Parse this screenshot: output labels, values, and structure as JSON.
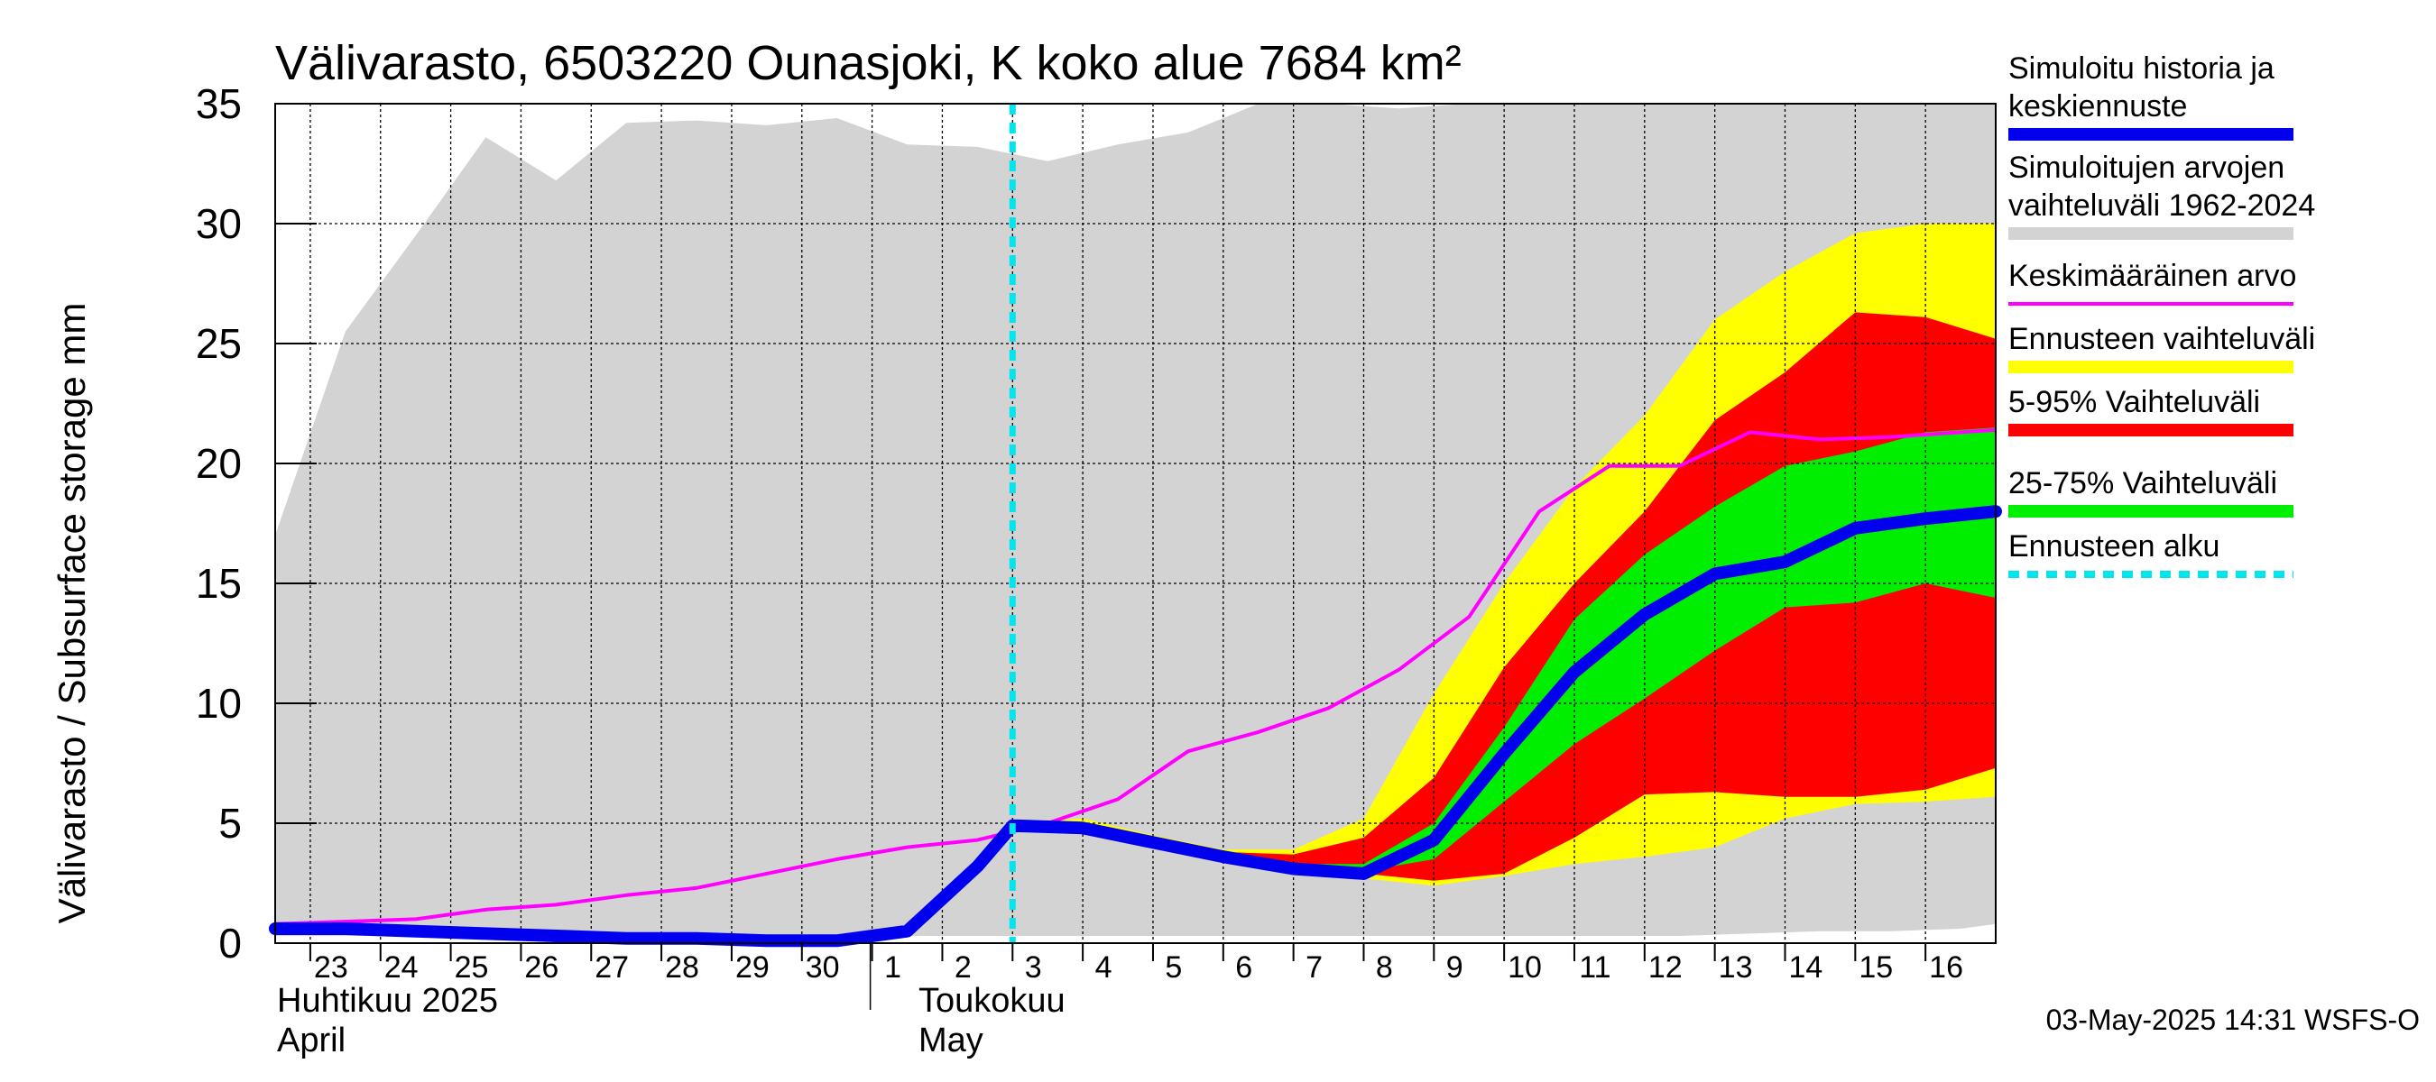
{
  "chart_data": {
    "type": "area",
    "title": "Välivarasto, 6503220 Ounasjoki, K koko alue 7684 km²",
    "ylabel": "Välivarasto / Subsurface storage  mm",
    "ylim": [
      0,
      35
    ],
    "yticks": [
      0,
      5,
      10,
      15,
      20,
      25,
      30,
      35
    ],
    "xlim": [
      "2025-04-22T12:00",
      "2025-05-17T00:00"
    ],
    "x_days": [
      "2025-04-23",
      "2025-04-24",
      "2025-04-25",
      "2025-04-26",
      "2025-04-27",
      "2025-04-28",
      "2025-04-29",
      "2025-04-30",
      "2025-05-01",
      "2025-05-02",
      "2025-05-03",
      "2025-05-04",
      "2025-05-05",
      "2025-05-06",
      "2025-05-07",
      "2025-05-08",
      "2025-05-09",
      "2025-05-10",
      "2025-05-11",
      "2025-05-12",
      "2025-05-13",
      "2025-05-14",
      "2025-05-15",
      "2025-05-16"
    ],
    "x_tick_labels": [
      "23",
      "24",
      "25",
      "26",
      "27",
      "28",
      "29",
      "30",
      "1",
      "2",
      "3",
      "4",
      "5",
      "6",
      "7",
      "8",
      "9",
      "10",
      "11",
      "12",
      "13",
      "14",
      "15",
      "16"
    ],
    "month_labels": [
      {
        "fi": "Huhtikuu  2025",
        "en": "April"
      },
      {
        "fi": "Toukokuu",
        "en": "May"
      }
    ],
    "forecast_start": "2025-05-03",
    "grid": true,
    "legend_position": "right",
    "historical_range": {
      "name": "Simuloitujen arvojen vaihteluväli 1962-2024",
      "color": "#d3d3d3",
      "x": [
        "2025-04-22T12:00",
        "2025-04-23T12:00",
        "2025-04-24T12:00",
        "2025-04-25T12:00",
        "2025-04-26T12:00",
        "2025-04-27T12:00",
        "2025-04-28T12:00",
        "2025-04-29T12:00",
        "2025-04-30T12:00",
        "2025-05-01T12:00",
        "2025-05-02T12:00",
        "2025-05-03T12:00",
        "2025-05-04T12:00",
        "2025-05-05T12:00",
        "2025-05-06T12:00",
        "2025-05-07T12:00",
        "2025-05-08T12:00",
        "2025-05-09T12:00",
        "2025-05-10T12:00",
        "2025-05-11T12:00",
        "2025-05-12T12:00",
        "2025-05-13T12:00",
        "2025-05-14T12:00",
        "2025-05-15T12:00",
        "2025-05-16T12:00",
        "2025-05-17T00:00"
      ],
      "upper": [
        17.0,
        25.5,
        29.5,
        33.6,
        31.8,
        34.2,
        34.3,
        34.1,
        34.4,
        33.3,
        33.2,
        32.6,
        33.3,
        33.8,
        35,
        35,
        34.8,
        35,
        35,
        35,
        35,
        35,
        35,
        35,
        35,
        35
      ],
      "lower": [
        0.3,
        0.3,
        0.3,
        0.3,
        0.3,
        0.3,
        0.3,
        0.3,
        0.3,
        0.3,
        0.3,
        0.3,
        0.3,
        0.3,
        0.3,
        0.3,
        0.3,
        0.3,
        0.3,
        0.3,
        0.3,
        0.4,
        0.5,
        0.5,
        0.6,
        0.8
      ]
    },
    "forecast_bands": [
      {
        "name": "Ennusteen vaihteluväli",
        "color": "#ffff00",
        "x": [
          "2025-05-03T00:00",
          "2025-05-04T00:00",
          "2025-05-05T00:00",
          "2025-05-06T00:00",
          "2025-05-07T00:00",
          "2025-05-08T00:00",
          "2025-05-09T00:00",
          "2025-05-10T00:00",
          "2025-05-11T00:00",
          "2025-05-12T00:00",
          "2025-05-13T00:00",
          "2025-05-14T00:00",
          "2025-05-15T00:00",
          "2025-05-16T00:00",
          "2025-05-17T00:00"
        ],
        "upper": [
          5.0,
          5.2,
          4.5,
          3.9,
          3.9,
          5.2,
          10.4,
          15.0,
          19.0,
          22.0,
          26.0,
          28.0,
          29.6,
          30.0,
          30.0
        ],
        "lower": [
          4.9,
          4.7,
          4.1,
          3.6,
          3.0,
          2.7,
          2.4,
          2.8,
          3.3,
          3.6,
          4.0,
          5.2,
          5.8,
          5.9,
          6.1
        ]
      },
      {
        "name": "5-95% Vaihteluväli",
        "color": "#ff0000",
        "x": [
          "2025-05-03T00:00",
          "2025-05-04T00:00",
          "2025-05-05T00:00",
          "2025-05-06T00:00",
          "2025-05-07T00:00",
          "2025-05-08T00:00",
          "2025-05-09T00:00",
          "2025-05-10T00:00",
          "2025-05-11T00:00",
          "2025-05-12T00:00",
          "2025-05-13T00:00",
          "2025-05-14T00:00",
          "2025-05-15T00:00",
          "2025-05-16T00:00",
          "2025-05-17T00:00"
        ],
        "upper": [
          5.0,
          5.0,
          4.4,
          3.8,
          3.7,
          4.4,
          6.9,
          11.5,
          15.0,
          18.0,
          21.8,
          23.8,
          26.3,
          26.1,
          25.2
        ],
        "lower": [
          4.9,
          4.8,
          4.2,
          3.6,
          3.1,
          2.9,
          2.6,
          2.9,
          4.4,
          6.2,
          6.3,
          6.1,
          6.1,
          6.4,
          7.3
        ]
      },
      {
        "name": "25-75% Vaihteluväli",
        "color": "#00ee00",
        "x": [
          "2025-05-03T00:00",
          "2025-05-04T00:00",
          "2025-05-05T00:00",
          "2025-05-06T00:00",
          "2025-05-07T00:00",
          "2025-05-08T00:00",
          "2025-05-09T00:00",
          "2025-05-10T00:00",
          "2025-05-11T00:00",
          "2025-05-12T00:00",
          "2025-05-13T00:00",
          "2025-05-14T00:00",
          "2025-05-15T00:00",
          "2025-05-16T00:00",
          "2025-05-17T00:00"
        ],
        "upper": [
          5.0,
          4.9,
          4.3,
          3.7,
          3.3,
          3.3,
          5.0,
          9.0,
          13.5,
          16.2,
          18.2,
          19.9,
          20.5,
          21.3,
          21.5
        ],
        "lower": [
          4.9,
          4.8,
          4.2,
          3.6,
          3.1,
          3.0,
          3.5,
          5.9,
          8.3,
          10.2,
          12.2,
          14.0,
          14.2,
          15.0,
          14.4
        ]
      }
    ],
    "series": [
      {
        "name": "Keskimääräinen arvo",
        "color": "#ff00ff",
        "x": [
          "2025-04-22T12:00",
          "2025-04-23T12:00",
          "2025-04-24T12:00",
          "2025-04-25T12:00",
          "2025-04-26T12:00",
          "2025-04-27T12:00",
          "2025-04-28T12:00",
          "2025-04-29T12:00",
          "2025-04-30T12:00",
          "2025-05-01T12:00",
          "2025-05-02T12:00",
          "2025-05-03T12:00",
          "2025-05-04T12:00",
          "2025-05-05T12:00",
          "2025-05-06T12:00",
          "2025-05-07T12:00",
          "2025-05-08T12:00",
          "2025-05-09T12:00",
          "2025-05-10T12:00",
          "2025-05-11T12:00",
          "2025-05-12T12:00",
          "2025-05-13T12:00",
          "2025-05-14T12:00",
          "2025-05-15T12:00",
          "2025-05-16T12:00",
          "2025-05-17T00:00"
        ],
        "values": [
          0.8,
          0.9,
          1.0,
          1.4,
          1.6,
          2.0,
          2.3,
          2.9,
          3.5,
          4.0,
          4.3,
          5.0,
          6.0,
          8.0,
          8.8,
          9.8,
          11.4,
          13.6,
          18.0,
          19.9,
          19.9,
          21.3,
          21.0,
          21.1,
          21.3,
          21.4
        ]
      },
      {
        "name": "Simuloitu historia ja keskiennuste",
        "color": "#0000ee",
        "x": [
          "2025-04-22T12:00",
          "2025-04-23T12:00",
          "2025-04-24T12:00",
          "2025-04-25T12:00",
          "2025-04-26T12:00",
          "2025-04-27T12:00",
          "2025-04-28T12:00",
          "2025-04-29T12:00",
          "2025-04-30T12:00",
          "2025-05-01T12:00",
          "2025-05-02T12:00",
          "2025-05-03T00:00",
          "2025-05-04T00:00",
          "2025-05-05T00:00",
          "2025-05-06T00:00",
          "2025-05-07T00:00",
          "2025-05-08T00:00",
          "2025-05-09T00:00",
          "2025-05-10T00:00",
          "2025-05-11T00:00",
          "2025-05-12T00:00",
          "2025-05-13T00:00",
          "2025-05-14T00:00",
          "2025-05-15T00:00",
          "2025-05-16T00:00",
          "2025-05-17T00:00"
        ],
        "values": [
          0.6,
          0.6,
          0.5,
          0.4,
          0.3,
          0.2,
          0.2,
          0.1,
          0.1,
          0.5,
          3.2,
          4.9,
          4.8,
          4.2,
          3.6,
          3.1,
          2.9,
          4.3,
          7.9,
          11.3,
          13.7,
          15.4,
          15.9,
          17.3,
          17.7,
          18.0
        ]
      }
    ],
    "forecast_start_line": {
      "name": "Ennusteen alku",
      "color": "#00e5ee"
    }
  },
  "legend": [
    {
      "lines": [
        "Simuloitu historia ja",
        "keskiennuste"
      ],
      "color": "#0000ee",
      "style": "thick-line"
    },
    {
      "lines": [
        "Simuloitujen arvojen",
        "vaihteluväli 1962-2024"
      ],
      "color": "#d3d3d3",
      "style": "thick-line"
    },
    {
      "lines": [
        "Keskimääräinen arvo"
      ],
      "color": "#ff00ff",
      "style": "thin-line"
    },
    {
      "lines": [
        "Ennusteen vaihteluväli"
      ],
      "color": "#ffff00",
      "style": "thick-line"
    },
    {
      "lines": [
        "5-95% Vaihteluväli"
      ],
      "color": "#ff0000",
      "style": "thick-line"
    },
    {
      "lines": [
        "25-75% Vaihteluväli"
      ],
      "color": "#00ee00",
      "style": "thick-line"
    },
    {
      "lines": [
        "Ennusteen alku"
      ],
      "color": "#00e5ee",
      "style": "dashed-line"
    }
  ],
  "footer": "03-May-2025 14:31 WSFS-O"
}
